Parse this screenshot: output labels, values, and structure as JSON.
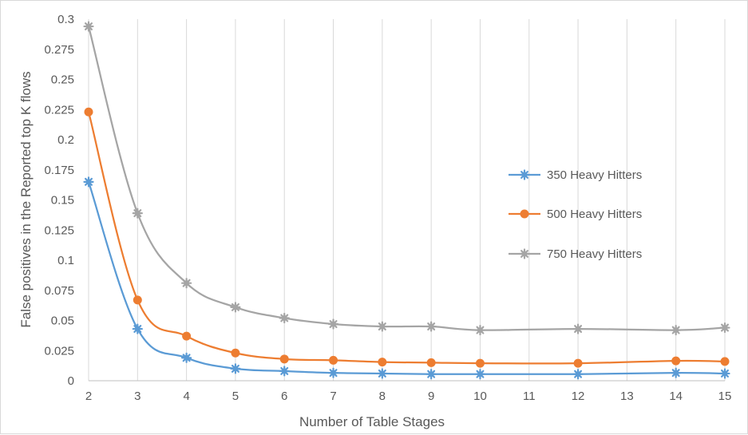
{
  "chart_data": {
    "type": "line",
    "title": "",
    "xlabel": "Number of Table Stages",
    "ylabel": "False positives in the Reported top K flows",
    "x_categories": [
      "2",
      "3",
      "4",
      "5",
      "6",
      "7",
      "8",
      "9",
      "10",
      "11",
      "12",
      "13",
      "14",
      "15"
    ],
    "ylim": [
      0,
      0.3
    ],
    "y_ticks": [
      "0",
      "0.025",
      "0.05",
      "0.075",
      "0.1",
      "0.125",
      "0.15",
      "0.175",
      "0.2",
      "0.225",
      "0.25",
      "0.275",
      "0.3"
    ],
    "grid": "vertical",
    "legend_position": "right",
    "series": [
      {
        "name": "350 Heavy Hitters",
        "color": "#5b9bd5",
        "marker": "star",
        "x": [
          2,
          3,
          4,
          5,
          6,
          7,
          8,
          9,
          10,
          12,
          14,
          15
        ],
        "values": [
          0.165,
          0.043,
          0.019,
          0.01,
          0.008,
          0.0065,
          0.006,
          0.0055,
          0.0055,
          0.0055,
          0.0065,
          0.006
        ]
      },
      {
        "name": "500 Heavy Hitters",
        "color": "#ed7d31",
        "marker": "circle",
        "x": [
          2,
          3,
          4,
          5,
          6,
          7,
          8,
          9,
          10,
          12,
          14,
          15
        ],
        "values": [
          0.223,
          0.067,
          0.037,
          0.023,
          0.018,
          0.017,
          0.0155,
          0.015,
          0.0145,
          0.0145,
          0.0165,
          0.016
        ]
      },
      {
        "name": "750 Heavy Hitters",
        "color": "#a5a5a5",
        "marker": "star",
        "x": [
          2,
          3,
          4,
          5,
          6,
          7,
          8,
          9,
          10,
          12,
          14,
          15
        ],
        "values": [
          0.294,
          0.139,
          0.081,
          0.061,
          0.052,
          0.047,
          0.045,
          0.045,
          0.042,
          0.043,
          0.042,
          0.044
        ]
      }
    ]
  }
}
